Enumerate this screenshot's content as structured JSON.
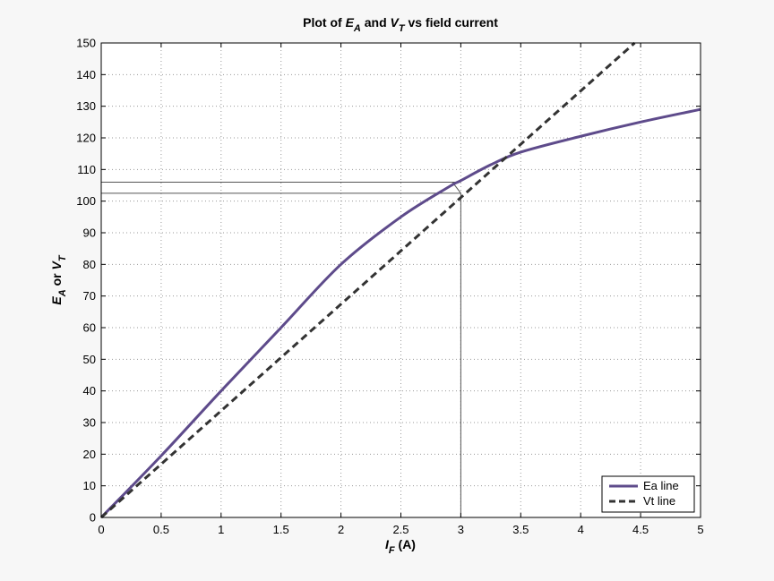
{
  "chart_data": {
    "type": "line",
    "title": {
      "pre": "Plot of ",
      "ea_main": "E",
      "ea_sub": "A",
      "mid": "  and ",
      "vt_main": "V",
      "vt_sub": "T",
      "post": "  vs field current"
    },
    "xlabel": {
      "main": "I",
      "sub": "F",
      "rest": " (A)"
    },
    "ylabel": {
      "ea_main": "E",
      "ea_sub": "A",
      "mid": "  or  ",
      "vt_main": "V",
      "vt_sub": "T"
    },
    "xlim": [
      0,
      5
    ],
    "ylim": [
      0,
      150
    ],
    "xticks": [
      "0",
      "0.5",
      "1",
      "1.5",
      "2",
      "2.5",
      "3",
      "3.5",
      "4",
      "4.5",
      "5"
    ],
    "yticks": [
      "0",
      "10",
      "20",
      "30",
      "40",
      "50",
      "60",
      "70",
      "80",
      "90",
      "100",
      "110",
      "120",
      "130",
      "140",
      "150"
    ],
    "grid": true,
    "legend_position": "bottom-right",
    "series": [
      {
        "name": "Ea line",
        "color": "#5e4b8b",
        "style": "solid",
        "x": [
          0,
          0.5,
          1.0,
          1.5,
          2.0,
          2.5,
          2.9,
          3.0,
          3.25,
          3.5,
          4.0,
          4.5,
          5.0
        ],
        "y": [
          0,
          19.5,
          40,
          60,
          80,
          95,
          104.5,
          106.5,
          111.5,
          115.5,
          120.5,
          125,
          129
        ]
      },
      {
        "name": "Vt line",
        "color": "#333333",
        "style": "dashed",
        "x": [
          0,
          4.45
        ],
        "y": [
          0,
          150
        ]
      }
    ],
    "annotations": {
      "color": "#555555",
      "hlines": [
        106,
        102.5
      ],
      "vline": {
        "x": 3.0,
        "y_top": 102.5
      },
      "connector": {
        "from": [
          2.93,
          106
        ],
        "to": [
          3.0,
          102.5
        ]
      }
    }
  }
}
